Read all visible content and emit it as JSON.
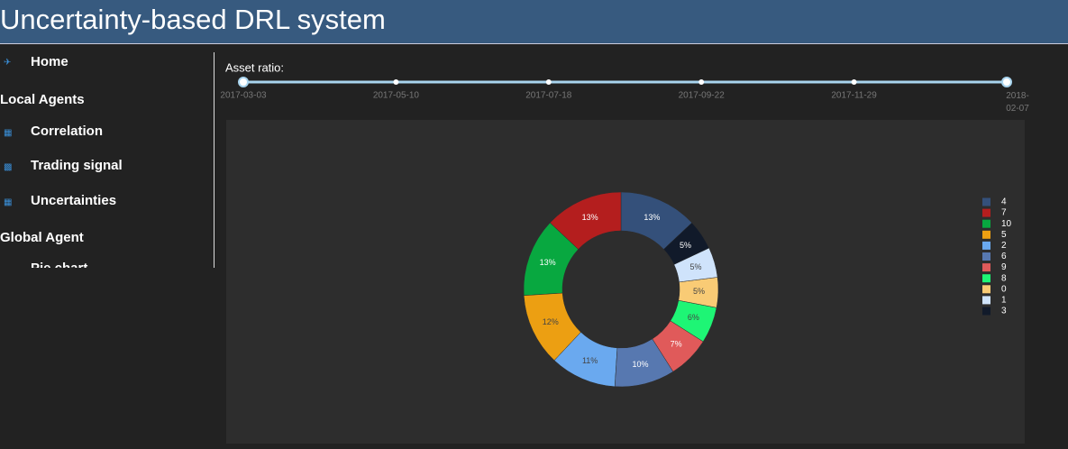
{
  "header": {
    "title": "Uncertainty-based DRL system"
  },
  "nav": {
    "items": [
      "Home",
      "Local Agents",
      "Correlation",
      "Trading signal",
      "Uncertainties",
      "Global Agent",
      "Pie chart"
    ]
  },
  "slider": {
    "label": "Asset ratio:",
    "marks": [
      "2017-03-03",
      "2017-05-10",
      "2017-07-18",
      "2017-09-22",
      "2017-11-29",
      "2018-02-07"
    ]
  },
  "chart_data": {
    "type": "pie",
    "categories": [
      "4",
      "7",
      "10",
      "5",
      "2",
      "6",
      "9",
      "8",
      "0",
      "1",
      "3"
    ],
    "values": [
      13,
      13,
      13,
      12,
      11,
      10,
      7,
      6,
      5,
      5,
      5
    ],
    "value_labels": [
      "13%",
      "13%",
      "13%",
      "12%",
      "11%",
      "10%",
      "7%",
      "6%",
      "5%",
      "5%",
      "5%"
    ],
    "colors": [
      "#34507a",
      "#b41e1e",
      "#08a840",
      "#ec9f12",
      "#6aa9ef",
      "#5778b0",
      "#e05a5a",
      "#1ef575",
      "#f9cb75",
      "#cfe3fb",
      "#111a2a"
    ],
    "legend": "right"
  }
}
